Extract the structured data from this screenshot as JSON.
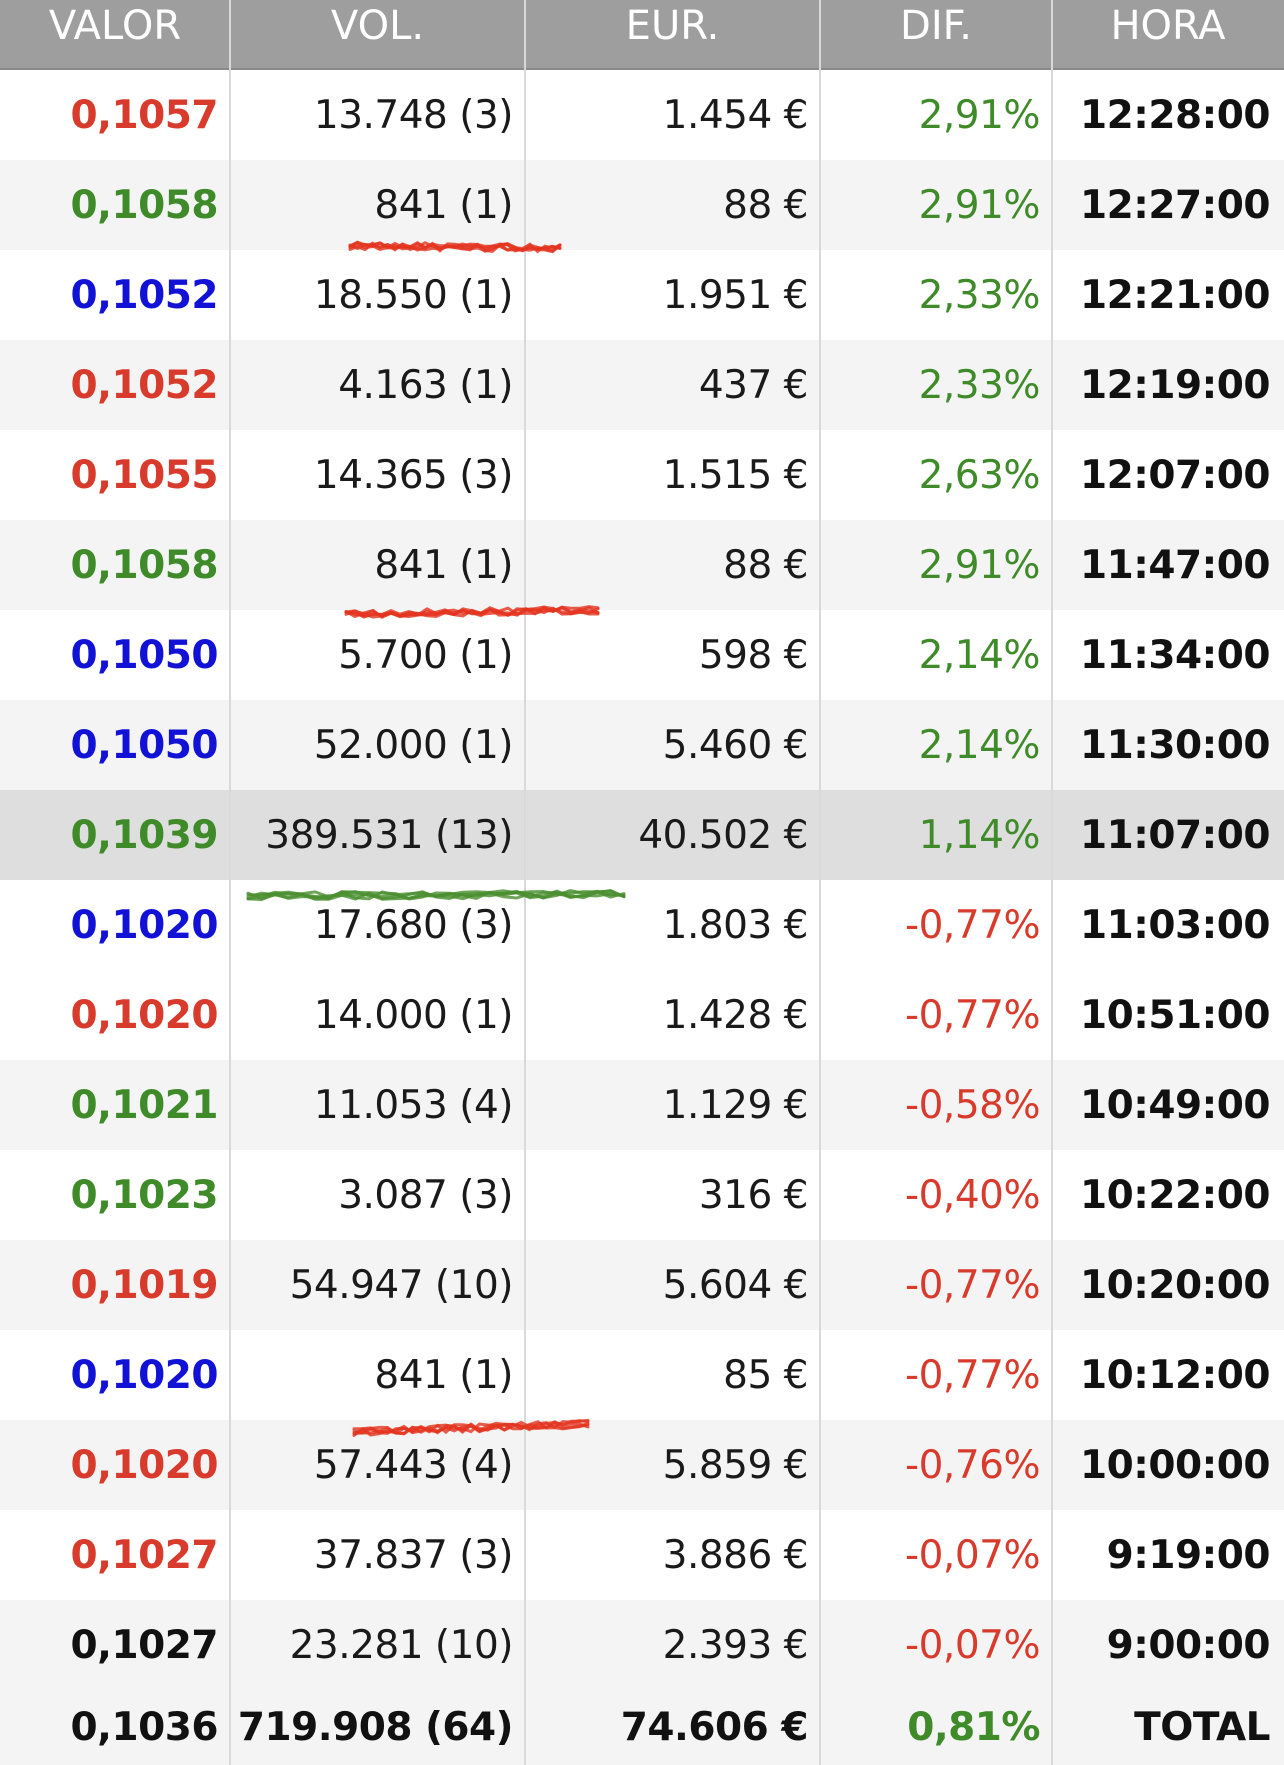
{
  "colors": {
    "red": "#d83a2c",
    "green": "#3f8b2a",
    "blue": "#1212d6",
    "black": "#111111",
    "dif_positive": "#3f8b2a",
    "dif_negative": "#d83a2c",
    "row_white": "#ffffff",
    "row_alt": "#f4f4f4",
    "row_highlight": "#dedede",
    "header_bg": "#9e9e9e"
  },
  "headers": [
    "VALOR",
    "VOL.",
    "EUR.",
    "DIF.",
    "HORA"
  ],
  "rows": [
    {
      "valor": "0,1057",
      "valor_color": "red",
      "vol": "13.748 (3)",
      "eur": "1.454 €",
      "dif": "2,91%",
      "dif_sign": "positive",
      "hora": "12:28:00",
      "bg": "row_white"
    },
    {
      "valor": "0,1058",
      "valor_color": "green",
      "vol": "841 (1)",
      "eur": "88 €",
      "dif": "2,91%",
      "dif_sign": "positive",
      "hora": "12:27:00",
      "bg": "row_alt"
    },
    {
      "valor": "0,1052",
      "valor_color": "blue",
      "vol": "18.550 (1)",
      "eur": "1.951 €",
      "dif": "2,33%",
      "dif_sign": "positive",
      "hora": "12:21:00",
      "bg": "row_white"
    },
    {
      "valor": "0,1052",
      "valor_color": "red",
      "vol": "4.163 (1)",
      "eur": "437 €",
      "dif": "2,33%",
      "dif_sign": "positive",
      "hora": "12:19:00",
      "bg": "row_alt"
    },
    {
      "valor": "0,1055",
      "valor_color": "red",
      "vol": "14.365 (3)",
      "eur": "1.515 €",
      "dif": "2,63%",
      "dif_sign": "positive",
      "hora": "12:07:00",
      "bg": "row_white"
    },
    {
      "valor": "0,1058",
      "valor_color": "green",
      "vol": "841 (1)",
      "eur": "88 €",
      "dif": "2,91%",
      "dif_sign": "positive",
      "hora": "11:47:00",
      "bg": "row_alt"
    },
    {
      "valor": "0,1050",
      "valor_color": "blue",
      "vol": "5.700 (1)",
      "eur": "598 €",
      "dif": "2,14%",
      "dif_sign": "positive",
      "hora": "11:34:00",
      "bg": "row_white"
    },
    {
      "valor": "0,1050",
      "valor_color": "blue",
      "vol": "52.000 (1)",
      "eur": "5.460 €",
      "dif": "2,14%",
      "dif_sign": "positive",
      "hora": "11:30:00",
      "bg": "row_alt"
    },
    {
      "valor": "0,1039",
      "valor_color": "green",
      "vol": "389.531 (13)",
      "eur": "40.502 €",
      "dif": "1,14%",
      "dif_sign": "positive",
      "hora": "11:07:00",
      "bg": "row_highlight"
    },
    {
      "valor": "0,1020",
      "valor_color": "blue",
      "vol": "17.680 (3)",
      "eur": "1.803 €",
      "dif": "-0,77%",
      "dif_sign": "negative",
      "hora": "11:03:00",
      "bg": "row_white"
    },
    {
      "valor": "0,1020",
      "valor_color": "red",
      "vol": "14.000 (1)",
      "eur": "1.428 €",
      "dif": "-0,77%",
      "dif_sign": "negative",
      "hora": "10:51:00",
      "bg": "row_white"
    },
    {
      "valor": "0,1021",
      "valor_color": "green",
      "vol": "11.053 (4)",
      "eur": "1.129 €",
      "dif": "-0,58%",
      "dif_sign": "negative",
      "hora": "10:49:00",
      "bg": "row_alt"
    },
    {
      "valor": "0,1023",
      "valor_color": "green",
      "vol": "3.087 (3)",
      "eur": "316 €",
      "dif": "-0,40%",
      "dif_sign": "negative",
      "hora": "10:22:00",
      "bg": "row_white"
    },
    {
      "valor": "0,1019",
      "valor_color": "red",
      "vol": "54.947 (10)",
      "eur": "5.604 €",
      "dif": "-0,77%",
      "dif_sign": "negative",
      "hora": "10:20:00",
      "bg": "row_alt"
    },
    {
      "valor": "0,1020",
      "valor_color": "blue",
      "vol": "841 (1)",
      "eur": "85 €",
      "dif": "-0,77%",
      "dif_sign": "negative",
      "hora": "10:12:00",
      "bg": "row_white"
    },
    {
      "valor": "0,1020",
      "valor_color": "red",
      "vol": "57.443 (4)",
      "eur": "5.859 €",
      "dif": "-0,76%",
      "dif_sign": "negative",
      "hora": "10:00:00",
      "bg": "row_alt"
    },
    {
      "valor": "0,1027",
      "valor_color": "red",
      "vol": "37.837 (3)",
      "eur": "3.886 €",
      "dif": "-0,07%",
      "dif_sign": "negative",
      "hora": "9:19:00",
      "bg": "row_white"
    },
    {
      "valor": "0,1027",
      "valor_color": "black",
      "vol": "23.281 (10)",
      "eur": "2.393 €",
      "dif": "-0,07%",
      "dif_sign": "negative",
      "hora": "9:00:00",
      "bg": "row_alt"
    }
  ],
  "total": {
    "valor": "0,1036",
    "vol": "719.908 (64)",
    "eur": "74.606 €",
    "dif": "0,81%",
    "dif_sign": "positive",
    "hora": "TOTAL",
    "bg": "row_alt"
  },
  "annotations": [
    {
      "name": "red-underline-1",
      "color": "#e3341f",
      "after_row": 1
    },
    {
      "name": "red-underline-2",
      "color": "#e3341f",
      "after_row": 5
    },
    {
      "name": "green-underline",
      "color": "#4a8f30",
      "after_row": 8
    },
    {
      "name": "red-underline-3",
      "color": "#e3341f",
      "after_row": 14
    }
  ]
}
